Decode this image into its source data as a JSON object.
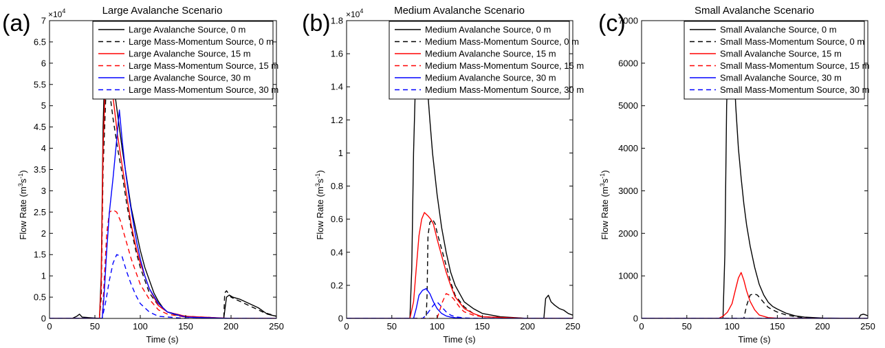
{
  "chart_data": [
    {
      "type": "line",
      "panel_label": "(a)",
      "title": "Large Avalanche Scenario",
      "xlabel": "Time (s)",
      "ylabel": "Flow Rate (m3s-1)",
      "ylabel_parts": {
        "base": "Flow Rate (m",
        "sup1": "3",
        "mid": "s",
        "sup2": "-1",
        "end": ")"
      },
      "exponent": {
        "base": "×10",
        "power": "4"
      },
      "xlim": [
        0,
        250
      ],
      "ylim": [
        0,
        7
      ],
      "xticks": [
        0,
        50,
        100,
        150,
        200,
        250
      ],
      "yticks": [
        0,
        0.5,
        1,
        1.5,
        2,
        2.5,
        3,
        3.5,
        4,
        4.5,
        5,
        5.5,
        6,
        6.5,
        7
      ],
      "ytick_labels": [
        "0",
        "0.5",
        "1",
        "1.5",
        "2",
        "2.5",
        "3",
        "3.5",
        "4",
        "4.5",
        "5",
        "5.5",
        "6",
        "6.5",
        "7"
      ],
      "legend_position": "top-right",
      "series": [
        {
          "name": "Large Avalanche Source, 0 m",
          "color": "#000000",
          "dash": false,
          "x": [
            0,
            25,
            30,
            33,
            36,
            55,
            57,
            59,
            61,
            63,
            65,
            67,
            70,
            75,
            80,
            85,
            90,
            95,
            100,
            105,
            110,
            115,
            120,
            125,
            130,
            140,
            150,
            160,
            180,
            192,
            195,
            198,
            202,
            210,
            220,
            230,
            240,
            250
          ],
          "y": [
            0,
            0,
            0.05,
            0.1,
            0.03,
            0,
            1.0,
            4.5,
            6.0,
            6.3,
            6.2,
            6.0,
            5.6,
            4.8,
            4.0,
            3.3,
            2.6,
            2.1,
            1.6,
            1.2,
            0.9,
            0.6,
            0.4,
            0.25,
            0.15,
            0.08,
            0.05,
            0.03,
            0.02,
            0,
            0.5,
            0.55,
            0.5,
            0.45,
            0.35,
            0.25,
            0.1,
            0.05
          ]
        },
        {
          "name": "Large Mass-Momentum Source, 0 m",
          "color": "#000000",
          "dash": true,
          "x": [
            0,
            55,
            57,
            59,
            62,
            64,
            67,
            70,
            75,
            80,
            85,
            90,
            95,
            100,
            110,
            120,
            130,
            150,
            180,
            192,
            193,
            195,
            200,
            210,
            220,
            235,
            250
          ],
          "y": [
            0,
            0,
            0.5,
            3.5,
            5.2,
            5.45,
            5.2,
            4.7,
            4.0,
            3.4,
            2.7,
            2.1,
            1.6,
            1.2,
            0.6,
            0.3,
            0.15,
            0.05,
            0.02,
            0,
            0.6,
            0.65,
            0.5,
            0.4,
            0.3,
            0.15,
            0.05
          ]
        },
        {
          "name": "Large Avalanche Source, 15 m",
          "color": "#ff0000",
          "dash": false,
          "x": [
            0,
            55,
            57,
            59,
            62,
            64,
            66,
            68,
            70,
            75,
            80,
            85,
            90,
            95,
            100,
            110,
            120,
            130,
            150,
            200,
            250
          ],
          "y": [
            0,
            0,
            0.8,
            4.0,
            5.8,
            6.0,
            5.9,
            5.6,
            5.2,
            4.3,
            3.6,
            2.9,
            2.2,
            1.7,
            1.3,
            0.7,
            0.3,
            0.15,
            0.05,
            0,
            0
          ]
        },
        {
          "name": "Large Mass-Momentum Source, 15 m",
          "color": "#ff0000",
          "dash": true,
          "x": [
            0,
            58,
            60,
            63,
            66,
            70,
            74,
            78,
            82,
            86,
            90,
            95,
            100,
            110,
            120,
            130,
            150,
            200,
            250
          ],
          "y": [
            0,
            0,
            0.8,
            2.0,
            2.5,
            2.55,
            2.5,
            2.3,
            2.0,
            1.7,
            1.4,
            1.1,
            0.8,
            0.45,
            0.2,
            0.1,
            0.03,
            0,
            0
          ]
        },
        {
          "name": "Large Avalanche Source, 30 m",
          "color": "#0000ff",
          "dash": false,
          "x": [
            0,
            58,
            60,
            63,
            66,
            70,
            74,
            77,
            80,
            84,
            88,
            92,
            96,
            100,
            105,
            110,
            120,
            130,
            150,
            200,
            250
          ],
          "y": [
            0,
            0,
            0.5,
            1.6,
            2.5,
            3.3,
            4.2,
            4.9,
            4.2,
            3.4,
            2.8,
            2.3,
            1.8,
            1.4,
            1.0,
            0.7,
            0.35,
            0.15,
            0.03,
            0,
            0
          ]
        },
        {
          "name": "Large Mass-Momentum Source, 30 m",
          "color": "#0000ff",
          "dash": true,
          "x": [
            0,
            58,
            62,
            66,
            70,
            74,
            80,
            85,
            90,
            95,
            100,
            110,
            120,
            150,
            200,
            250
          ],
          "y": [
            0,
            0,
            0.4,
            0.9,
            1.3,
            1.5,
            1.45,
            1.1,
            0.8,
            0.55,
            0.35,
            0.15,
            0.05,
            0,
            0,
            0
          ]
        }
      ]
    },
    {
      "type": "line",
      "panel_label": "(b)",
      "title": "Medium Avalanche Scenario",
      "xlabel": "Time (s)",
      "ylabel": "Flow Rate (m3s-1)",
      "ylabel_parts": {
        "base": "Flow Rate (m",
        "sup1": "3",
        "mid": "s",
        "sup2": "-1",
        "end": ")"
      },
      "exponent": {
        "base": "×10",
        "power": "4"
      },
      "xlim": [
        0,
        250
      ],
      "ylim": [
        0,
        1.8
      ],
      "xticks": [
        0,
        50,
        100,
        150,
        200,
        250
      ],
      "yticks": [
        0,
        0.2,
        0.4,
        0.6,
        0.8,
        1,
        1.2,
        1.4,
        1.6,
        1.8
      ],
      "ytick_labels": [
        "0",
        "0.2",
        "0.4",
        "0.6",
        "0.8",
        "1",
        "1.2",
        "1.4",
        "1.6",
        "1.8"
      ],
      "legend_position": "top-right",
      "series": [
        {
          "name": "Medium Avalanche Source, 0 m",
          "color": "#000000",
          "dash": false,
          "x": [
            0,
            70,
            72,
            74,
            76,
            78,
            80,
            82,
            84,
            86,
            88,
            90,
            92,
            95,
            100,
            105,
            110,
            115,
            120,
            130,
            140,
            150,
            170,
            200,
            218,
            220,
            223,
            226,
            230,
            235,
            240,
            245,
            250
          ],
          "y": [
            0,
            0,
            0.3,
            1.0,
            1.4,
            1.55,
            1.6,
            1.65,
            1.7,
            1.68,
            1.55,
            1.35,
            1.2,
            1.0,
            0.75,
            0.55,
            0.4,
            0.28,
            0.2,
            0.1,
            0.06,
            0.03,
            0.01,
            0,
            0,
            0.12,
            0.14,
            0.1,
            0.08,
            0.06,
            0.05,
            0.03,
            0.02
          ]
        },
        {
          "name": "Medium Mass-Momentum Source, 0 m",
          "color": "#000000",
          "dash": true,
          "x": [
            0,
            88,
            89,
            90,
            92,
            95,
            98,
            100,
            105,
            110,
            115,
            120,
            130,
            140,
            150,
            200,
            250
          ],
          "y": [
            0,
            0,
            0.15,
            0.5,
            0.58,
            0.6,
            0.57,
            0.52,
            0.42,
            0.32,
            0.22,
            0.14,
            0.07,
            0.03,
            0.01,
            0,
            0
          ]
        },
        {
          "name": "Medium Avalanche Source, 15 m",
          "color": "#ff0000",
          "dash": false,
          "x": [
            0,
            70,
            74,
            77,
            80,
            83,
            86,
            88,
            90,
            93,
            96,
            100,
            105,
            110,
            115,
            120,
            130,
            140,
            150,
            200,
            250
          ],
          "y": [
            0,
            0,
            0.1,
            0.3,
            0.5,
            0.6,
            0.64,
            0.63,
            0.62,
            0.6,
            0.57,
            0.48,
            0.38,
            0.28,
            0.2,
            0.13,
            0.06,
            0.03,
            0.01,
            0,
            0
          ]
        },
        {
          "name": "Medium Mass-Momentum Source, 15 m",
          "color": "#ff0000",
          "dash": true,
          "x": [
            0,
            100,
            103,
            106,
            110,
            114,
            118,
            122,
            126,
            130,
            140,
            150,
            200,
            250
          ],
          "y": [
            0,
            0,
            0.05,
            0.1,
            0.15,
            0.14,
            0.12,
            0.09,
            0.06,
            0.04,
            0.02,
            0.01,
            0,
            0
          ]
        },
        {
          "name": "Medium Avalanche Source, 30 m",
          "color": "#0000ff",
          "dash": false,
          "x": [
            0,
            74,
            77,
            80,
            84,
            88,
            92,
            96,
            100,
            105,
            110,
            115,
            120,
            130,
            150,
            200,
            250
          ],
          "y": [
            0,
            0,
            0.06,
            0.14,
            0.17,
            0.18,
            0.15,
            0.1,
            0.06,
            0.03,
            0.015,
            0.008,
            0.004,
            0,
            0,
            0,
            0
          ]
        },
        {
          "name": "Medium Mass-Momentum Source, 30 m",
          "color": "#0000ff",
          "dash": true,
          "x": [
            0,
            84,
            88,
            92,
            96,
            100,
            105,
            110,
            115,
            120,
            130,
            150,
            200,
            250
          ],
          "y": [
            0,
            0,
            0.02,
            0.05,
            0.08,
            0.1,
            0.07,
            0.04,
            0.02,
            0.01,
            0.003,
            0,
            0,
            0
          ]
        }
      ]
    },
    {
      "type": "line",
      "panel_label": "(c)",
      "title": "Small Avalanche Scenario",
      "xlabel": "Time (s)",
      "ylabel": "Flow Rate (m3s-1)",
      "ylabel_parts": {
        "base": "Flow Rate (m",
        "sup1": "3",
        "mid": "s",
        "sup2": "-1",
        "end": ")"
      },
      "exponent": null,
      "xlim": [
        0,
        250
      ],
      "ylim": [
        0,
        7000
      ],
      "xticks": [
        0,
        50,
        100,
        150,
        200,
        250
      ],
      "yticks": [
        0,
        1000,
        2000,
        3000,
        4000,
        5000,
        6000,
        7000
      ],
      "ytick_labels": [
        "0",
        "1000",
        "2000",
        "3000",
        "4000",
        "5000",
        "6000",
        "7000"
      ],
      "legend_position": "top-right",
      "series": [
        {
          "name": "Small Avalanche Source, 0 m",
          "color": "#000000",
          "dash": false,
          "x": [
            0,
            90,
            92,
            94,
            96,
            98,
            100,
            102,
            104,
            107,
            110,
            113,
            116,
            120,
            125,
            130,
            135,
            140,
            145,
            150,
            160,
            170,
            180,
            200,
            240,
            242,
            245,
            248,
            250
          ],
          "y": [
            0,
            0,
            1500,
            5000,
            6350,
            6400,
            6350,
            6000,
            5000,
            4000,
            3300,
            2700,
            2200,
            1700,
            1200,
            800,
            550,
            380,
            280,
            220,
            120,
            60,
            30,
            10,
            0,
            80,
            100,
            80,
            60
          ]
        },
        {
          "name": "Small Mass-Momentum Source, 0 m",
          "color": "#000000",
          "dash": true,
          "x": [
            0,
            113,
            116,
            120,
            124,
            128,
            132,
            136,
            140,
            145,
            150,
            160,
            170,
            180,
            200,
            250
          ],
          "y": [
            0,
            0,
            300,
            550,
            580,
            550,
            450,
            350,
            260,
            200,
            150,
            80,
            40,
            20,
            5,
            0
          ]
        },
        {
          "name": "Small Avalanche Source, 15 m",
          "color": "#ff0000",
          "dash": false,
          "x": [
            0,
            85,
            90,
            95,
            100,
            104,
            107,
            110,
            113,
            116,
            120,
            125,
            130,
            140,
            150,
            200,
            250
          ],
          "y": [
            0,
            0,
            50,
            150,
            350,
            700,
            950,
            1080,
            900,
            650,
            400,
            200,
            80,
            20,
            5,
            0,
            0
          ]
        },
        {
          "name": "Small Mass-Momentum Source, 15 m",
          "color": "#ff0000",
          "dash": true,
          "x": [
            0,
            250
          ],
          "y": [
            0,
            0
          ]
        },
        {
          "name": "Small Avalanche Source, 30 m",
          "color": "#0000ff",
          "dash": false,
          "x": [
            0,
            250
          ],
          "y": [
            0,
            0
          ]
        },
        {
          "name": "Small Mass-Momentum Source, 30 m",
          "color": "#0000ff",
          "dash": true,
          "x": [
            0,
            250
          ],
          "y": [
            0,
            0
          ]
        }
      ]
    }
  ]
}
